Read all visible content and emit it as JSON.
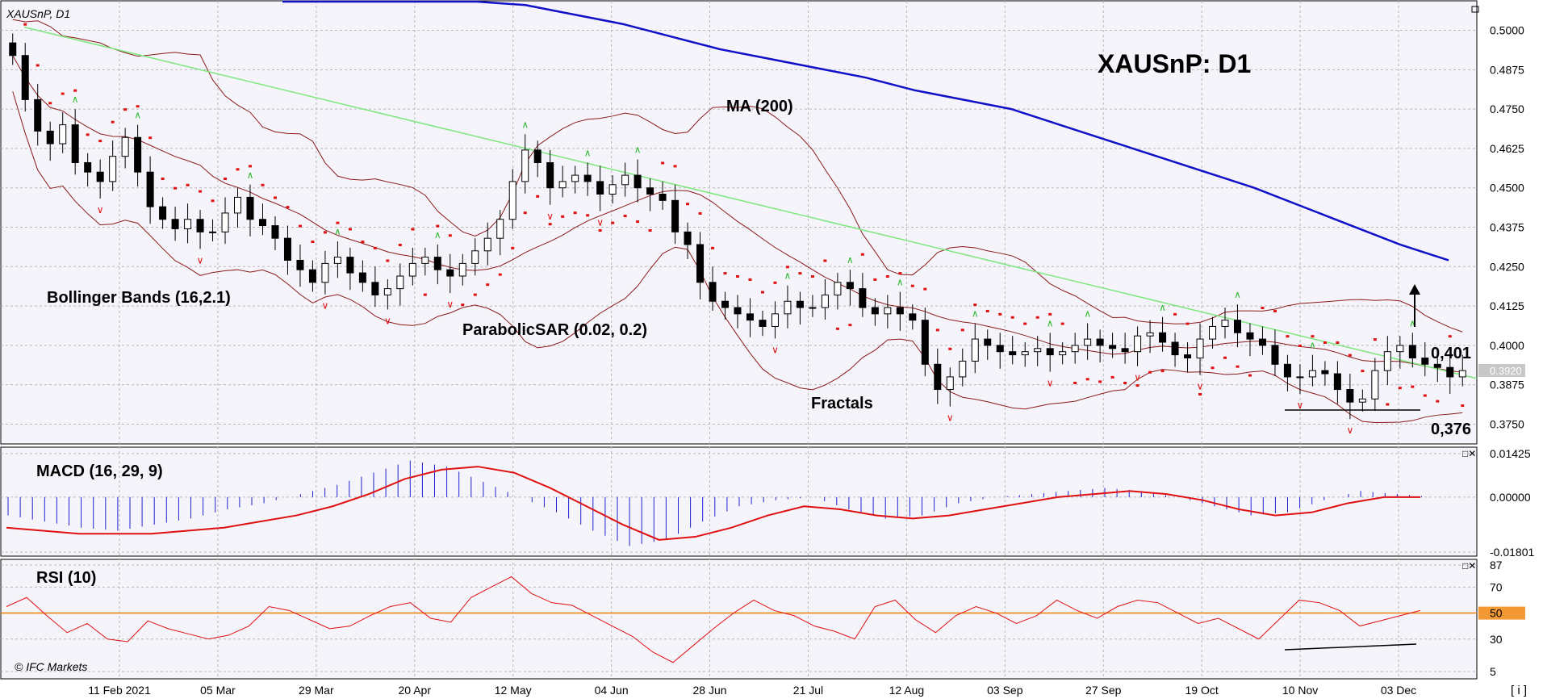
{
  "symbol_label": "XAUSnP, D1",
  "title": "XAUSnP: D1",
  "indicator_labels": {
    "ma": "MA (200)",
    "bollinger": "Bollinger Bands (16,2.1)",
    "sar": "ParabolicSAR (0.02, 0.2)",
    "fractals": "Fractals",
    "macd": "MACD (16, 29, 9)",
    "rsi": "RSI (10)"
  },
  "annotations": {
    "resistance": "0,401",
    "support": "0,376"
  },
  "watermark": "© IFC Markets",
  "last_price_label": "0.3920",
  "info_button": "[ i ]",
  "colors": {
    "bg": "#f4f4fa",
    "grid": "#b8b8b8",
    "ma": "#1010c8",
    "bands": "#8b1a1a",
    "sar": "#e01010",
    "trendline": "#7ce87c",
    "macd_hist": "#2020d0",
    "macd_signal": "#e01010",
    "rsi": "#e01010",
    "rsi_level": "#f08000",
    "fractal_up": "#2eb82e",
    "fractal_down": "#e01010"
  },
  "chart_data": [
    {
      "type": "candlestick",
      "title": "XAUSnP: D1",
      "x_labels": [
        "11 Feb 2021",
        "05 Mar",
        "29 Mar",
        "20 Apr",
        "12 May",
        "04 Jun",
        "28 Jun",
        "21 Jul",
        "12 Aug",
        "03 Sep",
        "27 Sep",
        "19 Oct",
        "10 Nov",
        "03 Dec"
      ],
      "y_ticks": [
        "0.5000",
        "0.4875",
        "0.4750",
        "0.4625",
        "0.4500",
        "0.4375",
        "0.4250",
        "0.4125",
        "0.4000",
        "0.3875",
        "0.3750"
      ],
      "ylim": [
        0.37,
        0.505
      ],
      "close": [
        0.492,
        0.478,
        0.468,
        0.464,
        0.47,
        0.458,
        0.455,
        0.452,
        0.46,
        0.466,
        0.455,
        0.444,
        0.44,
        0.437,
        0.44,
        0.436,
        0.436,
        0.442,
        0.447,
        0.44,
        0.438,
        0.434,
        0.427,
        0.424,
        0.42,
        0.426,
        0.428,
        0.423,
        0.42,
        0.416,
        0.418,
        0.422,
        0.426,
        0.428,
        0.424,
        0.422,
        0.426,
        0.43,
        0.434,
        0.44,
        0.452,
        0.462,
        0.458,
        0.45,
        0.452,
        0.454,
        0.452,
        0.448,
        0.451,
        0.454,
        0.45,
        0.448,
        0.446,
        0.436,
        0.432,
        0.42,
        0.414,
        0.412,
        0.41,
        0.408,
        0.406,
        0.41,
        0.414,
        0.412,
        0.412,
        0.416,
        0.42,
        0.418,
        0.412,
        0.41,
        0.412,
        0.41,
        0.408,
        0.394,
        0.386,
        0.39,
        0.395,
        0.402,
        0.4,
        0.398,
        0.397,
        0.398,
        0.399,
        0.397,
        0.398,
        0.4,
        0.402,
        0.4,
        0.399,
        0.398,
        0.403,
        0.404,
        0.401,
        0.397,
        0.396,
        0.402,
        0.406,
        0.408,
        0.404,
        0.402,
        0.4,
        0.394,
        0.39,
        0.39,
        0.392,
        0.391,
        0.386,
        0.382,
        0.383,
        0.392,
        0.398,
        0.4,
        0.396,
        0.394,
        0.393,
        0.39,
        0.392
      ],
      "ma200": [
        0.522,
        0.52,
        0.517,
        0.514,
        0.511,
        0.508,
        0.505,
        0.502,
        0.498,
        0.494,
        0.491,
        0.488,
        0.485,
        0.481,
        0.478,
        0.475,
        0.47,
        0.465,
        0.46,
        0.455,
        0.45,
        0.444,
        0.438,
        0.432,
        0.427
      ],
      "annotations": [
        "0,401",
        "0,376"
      ]
    },
    {
      "type": "bar",
      "title": "MACD (16, 29, 9)",
      "y_ticks": [
        "0.01425",
        "0.00000",
        "-0.01801"
      ],
      "ylim": [
        -0.01801,
        0.01425
      ],
      "histogram": [
        -0.006,
        -0.008,
        -0.01,
        -0.011,
        -0.009,
        -0.007,
        -0.004,
        -0.002,
        0.001,
        0.004,
        0.008,
        0.012,
        0.01,
        0.005,
        0.0,
        -0.005,
        -0.011,
        -0.016,
        -0.014,
        -0.008,
        -0.003,
        -0.001,
        0.0,
        -0.004,
        -0.007,
        -0.006,
        -0.002,
        0.0,
        0.001,
        0.002,
        0.003,
        0.002,
        0.0,
        -0.003,
        -0.006,
        -0.005,
        -0.001,
        0.002,
        0.001,
        0.0
      ],
      "signal": [
        -0.01,
        -0.011,
        -0.012,
        -0.012,
        -0.012,
        -0.011,
        -0.01,
        -0.008,
        -0.006,
        -0.003,
        0.001,
        0.006,
        0.009,
        0.01,
        0.008,
        0.003,
        -0.003,
        -0.009,
        -0.014,
        -0.013,
        -0.01,
        -0.006,
        -0.003,
        -0.004,
        -0.006,
        -0.007,
        -0.006,
        -0.004,
        -0.002,
        0.0,
        0.001,
        0.002,
        0.001,
        -0.001,
        -0.004,
        -0.006,
        -0.005,
        -0.002,
        0.0,
        0.0
      ]
    },
    {
      "type": "line",
      "title": "RSI (10)",
      "y_ticks": [
        "87",
        "70",
        "50",
        "30",
        "5"
      ],
      "ylim": [
        5,
        87
      ],
      "level": 50,
      "values": [
        55,
        62,
        48,
        35,
        42,
        30,
        28,
        44,
        38,
        34,
        30,
        33,
        40,
        55,
        52,
        45,
        38,
        40,
        48,
        55,
        58,
        46,
        43,
        62,
        70,
        78,
        65,
        58,
        56,
        48,
        40,
        32,
        20,
        12,
        25,
        38,
        50,
        60,
        52,
        48,
        40,
        36,
        30,
        55,
        60,
        45,
        35,
        48,
        55,
        50,
        42,
        48,
        60,
        52,
        46,
        55,
        60,
        58,
        50,
        42,
        46,
        38,
        30,
        45,
        60,
        58,
        52,
        40,
        44,
        48,
        52
      ]
    }
  ]
}
